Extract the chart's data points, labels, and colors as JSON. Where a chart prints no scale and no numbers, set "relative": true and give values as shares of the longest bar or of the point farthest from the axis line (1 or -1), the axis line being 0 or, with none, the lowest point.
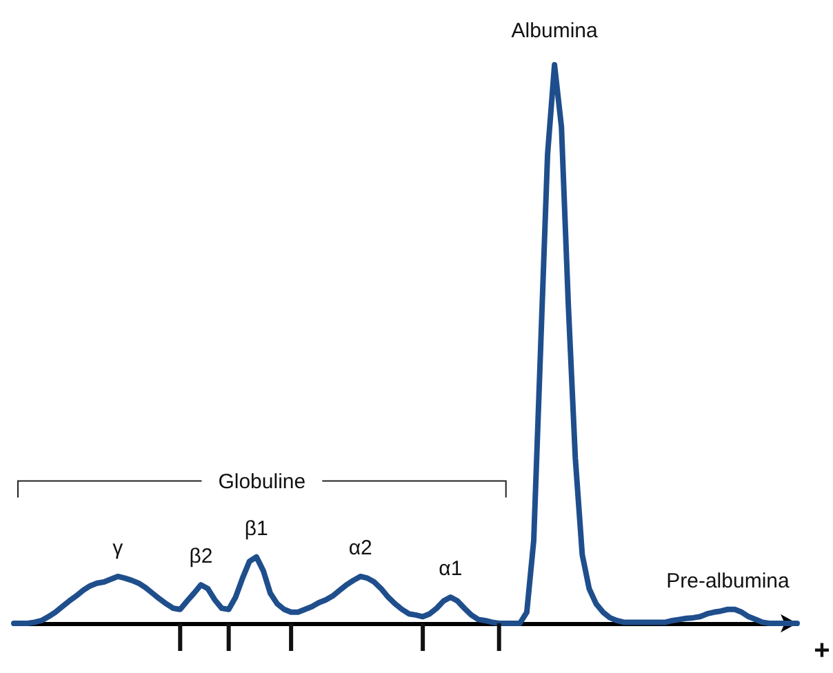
{
  "chart_data": {
    "type": "line",
    "relative": true,
    "color": "#1f4e8c",
    "categories": [
      null,
      null,
      null,
      null,
      null,
      null,
      null,
      null,
      null,
      null,
      null,
      null,
      null,
      null,
      null,
      null,
      null,
      null,
      null,
      null,
      null,
      null,
      null,
      null,
      null,
      null,
      null,
      null,
      null,
      null,
      null,
      null,
      null,
      null,
      null,
      null,
      null,
      null,
      null,
      null,
      null,
      null,
      null,
      null,
      null,
      null,
      null,
      null,
      null,
      null,
      null,
      null,
      null,
      null,
      null,
      null,
      null,
      null,
      null,
      null,
      null,
      null,
      null,
      null,
      null,
      null,
      null,
      null,
      null,
      null,
      null,
      null,
      null,
      null,
      null,
      null,
      null,
      null,
      null,
      null,
      null,
      null,
      null,
      null,
      null,
      null,
      null,
      null,
      null,
      null,
      null,
      null,
      null,
      null,
      null,
      null,
      null,
      null,
      null,
      null,
      null,
      null,
      null,
      null,
      null,
      null,
      null,
      null,
      null,
      null,
      null,
      null,
      null,
      null
    ],
    "values": [
      0,
      0,
      0,
      0.002,
      0.005,
      0.012,
      0.02,
      0.03,
      0.04,
      0.049,
      0.059,
      0.067,
      0.072,
      0.074,
      0.079,
      0.084,
      0.081,
      0.077,
      0.072,
      0.064,
      0.054,
      0.044,
      0.035,
      0.027,
      0.025,
      0.04,
      0.054,
      0.069,
      0.062,
      0.042,
      0.027,
      0.025,
      0.047,
      0.081,
      0.111,
      0.119,
      0.094,
      0.054,
      0.035,
      0.025,
      0.02,
      0.02,
      0.025,
      0.03,
      0.037,
      0.042,
      0.049,
      0.059,
      0.069,
      0.077,
      0.084,
      0.081,
      0.074,
      0.062,
      0.047,
      0.035,
      0.025,
      0.017,
      0.015,
      0.012,
      0.017,
      0.027,
      0.04,
      0.047,
      0.04,
      0.027,
      0.015,
      0.007,
      0.005,
      0.002,
      0,
      0,
      0,
      0,
      0.02,
      0.148,
      0.494,
      0.84,
      1,
      0.889,
      0.568,
      0.296,
      0.123,
      0.062,
      0.035,
      0.02,
      0.01,
      0.005,
      0.002,
      0.002,
      0.002,
      0.002,
      0.002,
      0.002,
      0.002,
      0.005,
      0.007,
      0.009,
      0.01,
      0.012,
      0.017,
      0.02,
      0.022,
      0.025,
      0.025,
      0.02,
      0.012,
      0.007,
      0.002,
      0,
      0,
      0,
      0,
      0
    ],
    "annotations": [
      "γ",
      "β2",
      "β1",
      "α2",
      "α1",
      "Albumina",
      "Pre-albumina",
      "Globuline",
      "+"
    ],
    "line_style": "solid"
  }
}
